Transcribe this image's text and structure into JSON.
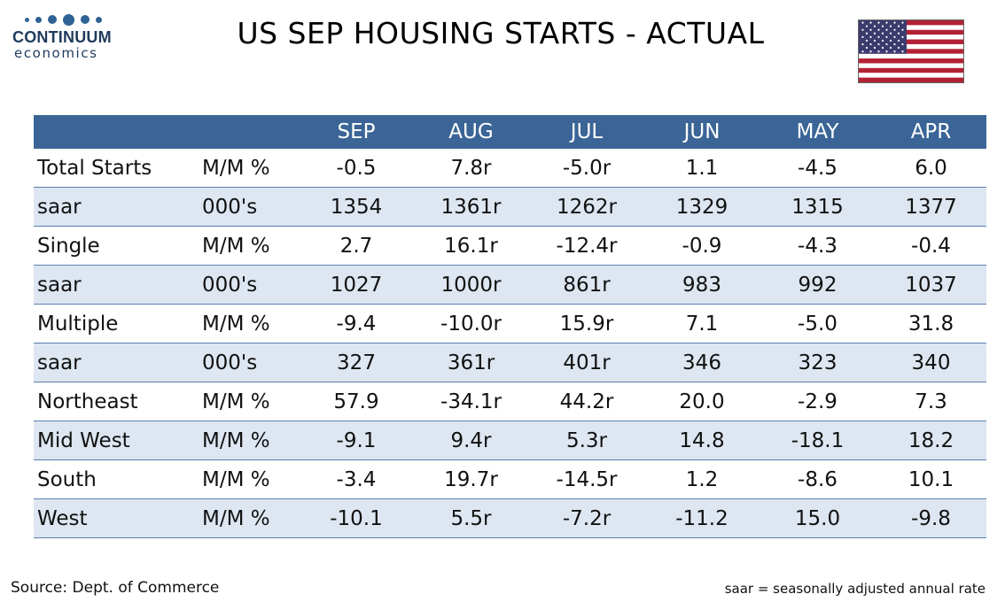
{
  "logo": {
    "name": "CONTINUUM",
    "subtitle": "economics"
  },
  "title": "US SEP HOUSING STARTS - ACTUAL",
  "flag": {
    "stripe_red": "#b22234",
    "canton_blue": "#3c3b6e"
  },
  "table": {
    "header_color": "#3a6596",
    "shade_color": "#dde6f1",
    "columns": [
      "",
      "",
      "SEP",
      "AUG",
      "JUL",
      "JUN",
      "MAY",
      "APR"
    ],
    "rows": [
      {
        "label": "Total Starts",
        "unit": "M/M %",
        "values": [
          "-0.5",
          "7.8r",
          "-5.0r",
          "1.1",
          "-4.5",
          "6.0"
        ]
      },
      {
        "label": "saar",
        "unit": "000's",
        "values": [
          "1354",
          "1361r",
          "1262r",
          "1329",
          "1315",
          "1377"
        ]
      },
      {
        "label": "Single",
        "unit": "M/M %",
        "values": [
          "2.7",
          "16.1r",
          "-12.4r",
          "-0.9",
          "-4.3",
          "-0.4"
        ]
      },
      {
        "label": "saar",
        "unit": "000's",
        "values": [
          "1027",
          "1000r",
          "861r",
          "983",
          "992",
          "1037"
        ]
      },
      {
        "label": "Multiple",
        "unit": "M/M %",
        "values": [
          "-9.4",
          "-10.0r",
          "15.9r",
          "7.1",
          "-5.0",
          "31.8"
        ]
      },
      {
        "label": "saar",
        "unit": "000's",
        "values": [
          "327",
          "361r",
          "401r",
          "346",
          "323",
          "340"
        ]
      },
      {
        "label": "Northeast",
        "unit": "M/M %",
        "values": [
          "57.9",
          "-34.1r",
          "44.2r",
          "20.0",
          "-2.9",
          "7.3"
        ]
      },
      {
        "label": "Mid West",
        "unit": "M/M %",
        "values": [
          "-9.1",
          "9.4r",
          "5.3r",
          "14.8",
          "-18.1",
          "18.2"
        ]
      },
      {
        "label": "South",
        "unit": "M/M %",
        "values": [
          "-3.4",
          "19.7r",
          "-14.5r",
          "1.2",
          "-8.6",
          "10.1"
        ]
      },
      {
        "label": "West",
        "unit": "M/M %",
        "values": [
          "-10.1",
          "5.5r",
          "-7.2r",
          "-11.2",
          "15.0",
          "-9.8"
        ]
      }
    ]
  },
  "footer": {
    "source": "Source: Dept. of Commerce",
    "note": "saar = seasonally adjusted annual rate"
  }
}
